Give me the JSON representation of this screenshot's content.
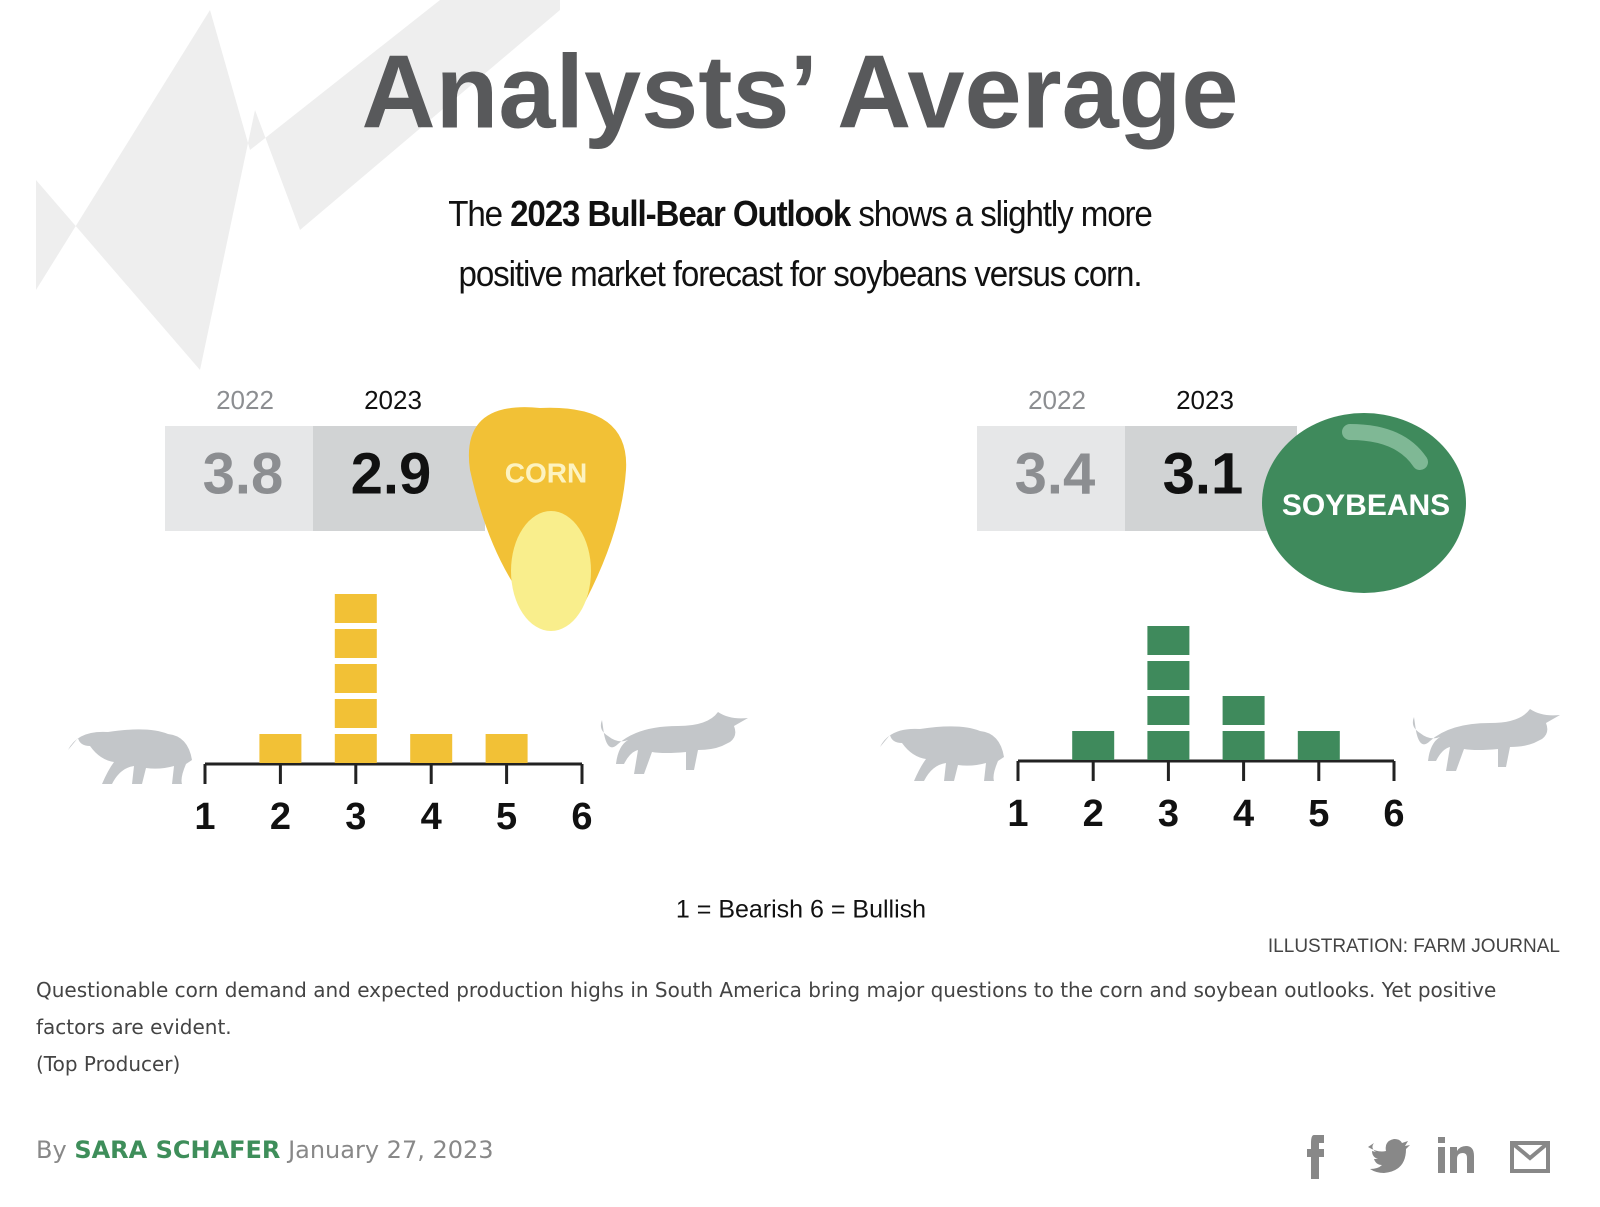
{
  "header": {
    "title": "Analysts’ Average",
    "subtitle": {
      "before": "The ",
      "bold": "2023 Bull-Bear Outlook",
      "after": " shows a slightly more positive market forecast for soybeans versus corn."
    }
  },
  "chart_data": [
    {
      "type": "bar",
      "name": "CORN",
      "color": "#f2c136",
      "categories": [
        "1",
        "2",
        "3",
        "4",
        "5",
        "6"
      ],
      "values": [
        0,
        1,
        5,
        1,
        1,
        0
      ],
      "averages": [
        {
          "year": "2022",
          "value": 3.8
        },
        {
          "year": "2023",
          "value": 2.9
        }
      ]
    },
    {
      "type": "bar",
      "name": "SOYBEANS",
      "color": "#3f8a5c",
      "categories": [
        "1",
        "2",
        "3",
        "4",
        "5",
        "6"
      ],
      "values": [
        0,
        1,
        4,
        2,
        1,
        0
      ],
      "averages": [
        {
          "year": "2022",
          "value": 3.4
        },
        {
          "year": "2023",
          "value": 3.1
        }
      ]
    }
  ],
  "scale_note": "1 = Bearish  6 = Bullish",
  "credit": "ILLUSTRATION: FARM JOURNAL",
  "caption": {
    "text": "Questionable corn demand and expected production highs in South America bring major questions to the corn and soybean outlooks. Yet positive factors are evident.",
    "source": "(Top Producer)"
  },
  "byline": {
    "prefix": "By",
    "author": "SARA SCHAFER",
    "date": "January 27, 2023"
  }
}
